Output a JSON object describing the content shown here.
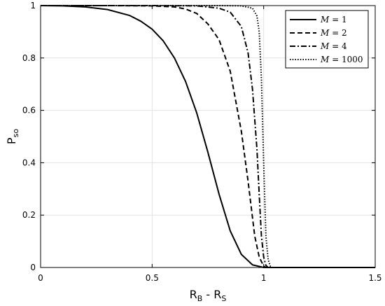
{
  "chart_data": {
    "type": "line",
    "xlabel": {
      "main": "R",
      "sub1": "B",
      "mid": " - R",
      "sub2": "S"
    },
    "ylabel": {
      "main": "P",
      "sub": "so"
    },
    "xlim": [
      0,
      1.5
    ],
    "ylim": [
      0,
      1
    ],
    "xticks": [
      0,
      0.5,
      1,
      1.5
    ],
    "xtick_labels": [
      "0",
      "0.5",
      "1",
      "1.5"
    ],
    "yticks": [
      0,
      0.2,
      0.4,
      0.6,
      0.8,
      1
    ],
    "ytick_labels": [
      "0",
      "0.2",
      "0.4",
      "0.6",
      "0.8",
      "1"
    ],
    "grid": true,
    "legend_position": "top-right",
    "series": [
      {
        "name": "M = 1",
        "legend": {
          "var": "M",
          "eq": " = ",
          "val": "1"
        },
        "style": "solid",
        "x": [
          0,
          0.1,
          0.2,
          0.3,
          0.4,
          0.45,
          0.5,
          0.55,
          0.6,
          0.65,
          0.7,
          0.75,
          0.8,
          0.85,
          0.9,
          0.95,
          1.0,
          1.5
        ],
        "y": [
          1.0,
          0.999,
          0.995,
          0.985,
          0.962,
          0.94,
          0.91,
          0.865,
          0.8,
          0.71,
          0.59,
          0.44,
          0.28,
          0.14,
          0.05,
          0.01,
          0.0,
          0.0
        ]
      },
      {
        "name": "M = 2",
        "legend": {
          "var": "M",
          "eq": " = ",
          "val": "2"
        },
        "style": "dashed",
        "x": [
          0,
          0.3,
          0.5,
          0.6,
          0.65,
          0.7,
          0.75,
          0.8,
          0.85,
          0.9,
          0.93,
          0.96,
          0.98,
          1.0,
          1.01,
          1.5
        ],
        "y": [
          1.0,
          1.0,
          0.999,
          0.995,
          0.987,
          0.97,
          0.93,
          0.87,
          0.75,
          0.52,
          0.33,
          0.12,
          0.04,
          0.005,
          0.0,
          0.0
        ]
      },
      {
        "name": "M = 4",
        "legend": {
          "var": "M",
          "eq": " = ",
          "val": "4"
        },
        "style": "dashdot",
        "x": [
          0,
          0.5,
          0.7,
          0.8,
          0.85,
          0.9,
          0.93,
          0.95,
          0.97,
          0.98,
          0.99,
          1.0,
          1.01,
          1.02,
          1.5
        ],
        "y": [
          1.0,
          1.0,
          0.999,
          0.99,
          0.975,
          0.92,
          0.82,
          0.68,
          0.45,
          0.28,
          0.12,
          0.04,
          0.008,
          0.0,
          0.0
        ]
      },
      {
        "name": "M = 1000",
        "legend": {
          "var": "M",
          "eq": " = ",
          "val": "1000"
        },
        "style": "dotted",
        "x": [
          0,
          0.8,
          0.9,
          0.95,
          0.97,
          0.98,
          0.99,
          1.0,
          1.01,
          1.02,
          1.03,
          1.04,
          1.5
        ],
        "y": [
          1.0,
          1.0,
          0.999,
          0.99,
          0.96,
          0.9,
          0.72,
          0.4,
          0.12,
          0.03,
          0.005,
          0.0,
          0.0
        ]
      }
    ]
  }
}
